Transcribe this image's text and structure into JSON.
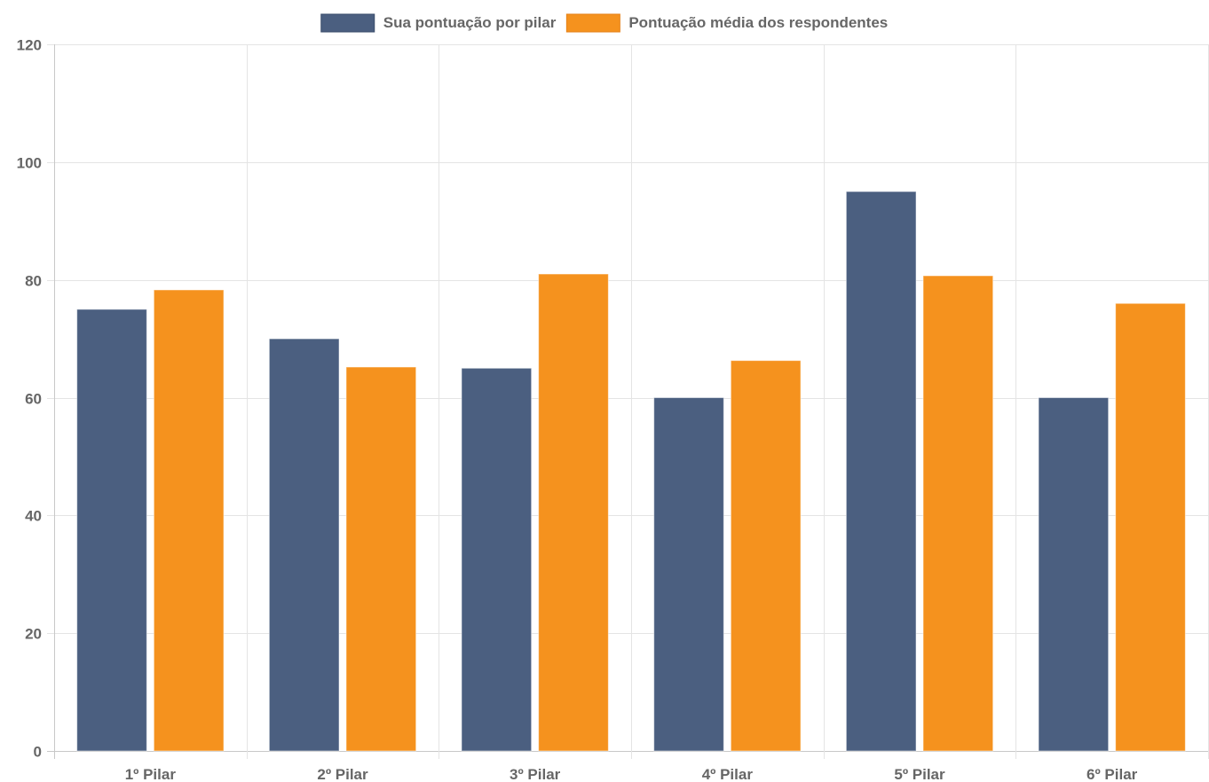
{
  "chart_data": {
    "type": "bar",
    "categories": [
      "1º Pilar",
      "2º Pilar",
      "3º Pilar",
      "4º Pilar",
      "5º Pilar",
      "6º Pilar"
    ],
    "series": [
      {
        "name": "Sua pontuação por pilar",
        "color": "#4b5f80",
        "values": [
          75,
          70,
          65,
          60,
          95,
          60
        ]
      },
      {
        "name": "Pontuação média dos respondentes",
        "color": "#f5921e",
        "values": [
          78.3,
          65.2,
          81,
          66.3,
          80.7,
          76
        ]
      }
    ],
    "ylim": [
      0,
      120
    ],
    "yticks": [
      0,
      20,
      40,
      60,
      80,
      100,
      120
    ],
    "grid": true,
    "legend_position": "top"
  }
}
